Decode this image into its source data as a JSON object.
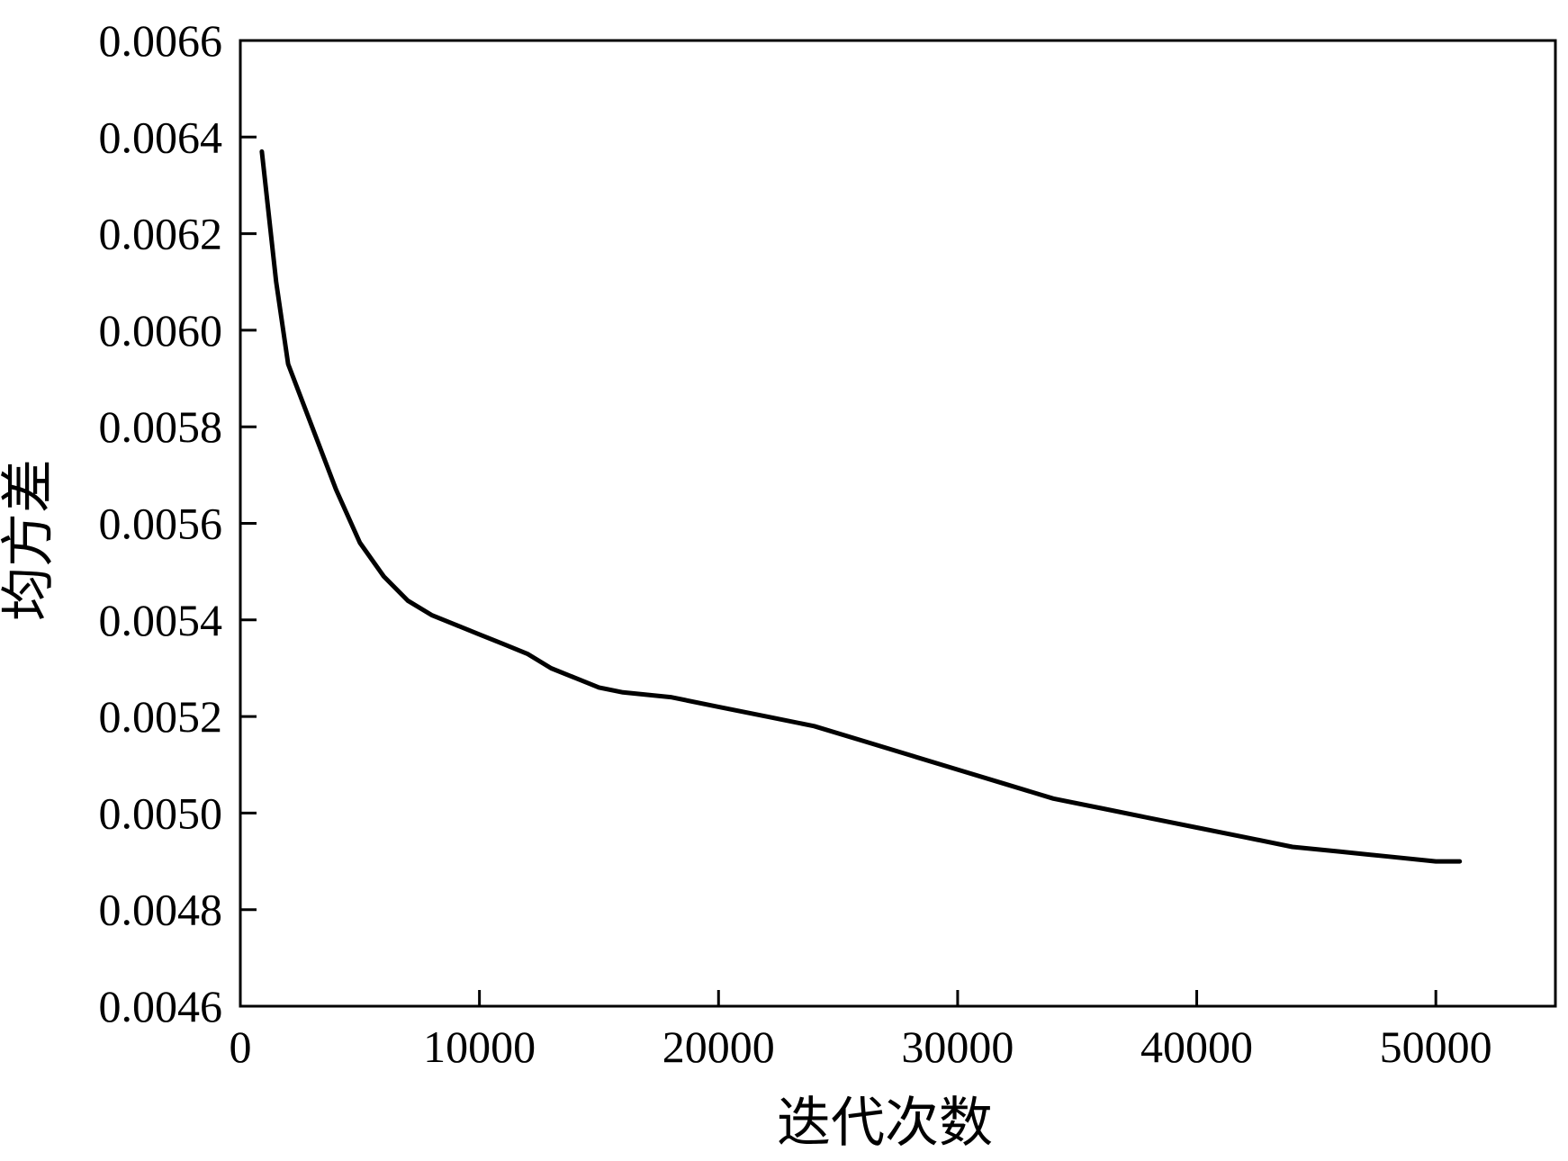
{
  "chart_data": {
    "type": "line",
    "title": "",
    "xlabel": "迭代次数",
    "ylabel": "均方差",
    "xlim": [
      0,
      55000
    ],
    "ylim": [
      0.0046,
      0.0066
    ],
    "x_ticks": [
      0,
      10000,
      20000,
      30000,
      40000,
      50000
    ],
    "x_tick_labels": [
      "0",
      "10000",
      "20000",
      "30000",
      "40000",
      "50000"
    ],
    "y_ticks": [
      0.0046,
      0.0048,
      0.005,
      0.0052,
      0.0054,
      0.0056,
      0.0058,
      0.006,
      0.0062,
      0.0064,
      0.0066
    ],
    "y_tick_labels": [
      "0.0046",
      "0.0048",
      "0.0050",
      "0.0052",
      "0.0054",
      "0.0056",
      "0.0058",
      "0.0060",
      "0.0062",
      "0.0064",
      "0.0066"
    ],
    "grid": false,
    "legend": "none",
    "series": [
      {
        "color": "#000000",
        "x": [
          900,
          1500,
          2000,
          3000,
          4000,
          5000,
          6000,
          7000,
          8000,
          9000,
          10000,
          11000,
          12000,
          13000,
          14000,
          15000,
          16000,
          18000,
          20000,
          22000,
          24000,
          26000,
          28000,
          30000,
          32000,
          34000,
          36000,
          38000,
          40000,
          42000,
          44000,
          46000,
          48000,
          50000,
          51000
        ],
        "y": [
          0.00637,
          0.0061,
          0.00593,
          0.0058,
          0.00567,
          0.00556,
          0.00549,
          0.00544,
          0.00541,
          0.00539,
          0.00537,
          0.00535,
          0.00533,
          0.0053,
          0.00528,
          0.00526,
          0.00525,
          0.00524,
          0.00522,
          0.0052,
          0.00518,
          0.00515,
          0.00512,
          0.00509,
          0.00506,
          0.00503,
          0.00501,
          0.00499,
          0.00497,
          0.00495,
          0.00493,
          0.00492,
          0.00491,
          0.0049,
          0.0049
        ]
      }
    ]
  }
}
